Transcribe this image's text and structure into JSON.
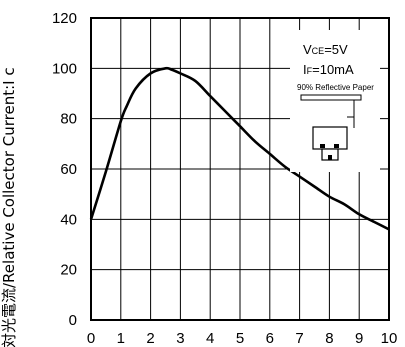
{
  "chart_data": {
    "type": "line",
    "title": "",
    "xlabel": "",
    "ylabel": "対光電流/Relative Collector Current:I c",
    "xlim": [
      0,
      10
    ],
    "ylim": [
      0,
      120
    ],
    "x_ticks": [
      0,
      1,
      2,
      3,
      4,
      5,
      6,
      7,
      8,
      9,
      10
    ],
    "y_ticks": [
      0,
      20,
      40,
      60,
      80,
      100,
      120
    ],
    "grid": true,
    "series": [
      {
        "x": [
          0,
          0.5,
          1.0,
          1.2,
          1.5,
          2.0,
          2.5,
          2.7,
          3.0,
          3.5,
          4.0,
          4.5,
          5.0,
          5.5,
          6.0,
          6.5,
          7.0,
          7.5,
          8.0,
          8.5,
          9.0,
          9.5,
          10.0
        ],
        "y": [
          40,
          59,
          79,
          85,
          92,
          98,
          100,
          99.5,
          98,
          95,
          89,
          83,
          77,
          71,
          66,
          61,
          57,
          53,
          49,
          46,
          42,
          39,
          36
        ]
      }
    ],
    "annotations": {
      "vce": "VCE=5V",
      "if": "IF=10mA",
      "paper": "90% Reflective Paper"
    }
  }
}
